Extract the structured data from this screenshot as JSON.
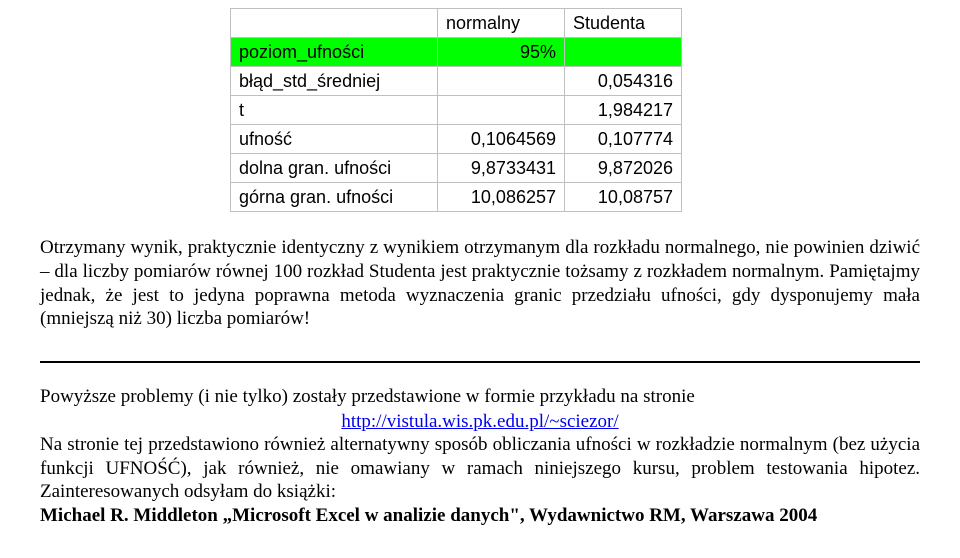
{
  "table": {
    "header": {
      "label": "",
      "v1": "normalny",
      "v2": "Studenta"
    },
    "rows": [
      {
        "label": "poziom_ufności",
        "v1": "95%",
        "v2": "",
        "highlight": true
      },
      {
        "label": "błąd_std_średniej",
        "v1": "",
        "v2": "0,054316"
      },
      {
        "label": "t",
        "v1": "",
        "v2": "1,984217"
      },
      {
        "label": "ufność",
        "v1": "0,1064569",
        "v2": "0,107774"
      },
      {
        "label": "dolna gran. ufności",
        "v1": "9,8733431",
        "v2": "9,872026"
      },
      {
        "label": "górna gran. ufności",
        "v1": "10,086257",
        "v2": "10,08757"
      }
    ],
    "colors": {
      "highlight_bg": "#00ff00",
      "border": "#c0c0c0",
      "background": "#ffffff"
    }
  },
  "para1": "Otrzymany wynik, praktycznie identyczny z wynikiem otrzymanym dla rozkładu normalnego, nie powinien dziwić – dla liczby pomiarów równej 100 rozkład Studenta jest praktycznie tożsamy z rozkładem normalnym. Pamiętajmy jednak, że jest to jedyna poprawna metoda wyznaczenia granic przedziału ufności, gdy dysponujemy mała (mniejszą niż 30) liczba pomiarów!",
  "para2_lead": "Powyższe problemy (i nie tylko) zostały przedstawione w formie przykładu na stronie",
  "link_text": "http://vistula.wis.pk.edu.pl/~sciezor/",
  "para2_rest": "Na stronie tej przedstawiono również alternatywny sposób obliczania ufności w rozkładzie normalnym (bez użycia funkcji UFNOŚĆ), jak również, nie omawiany w ramach niniejszego kursu, problem testowania hipotez. Zainteresowanych odsyłam do książki:",
  "ref_author": "Michael R. ",
  "ref_title": "Middleton „Microsoft Excel w analizie danych\", Wydawnictwo RM, Warszawa 2004"
}
